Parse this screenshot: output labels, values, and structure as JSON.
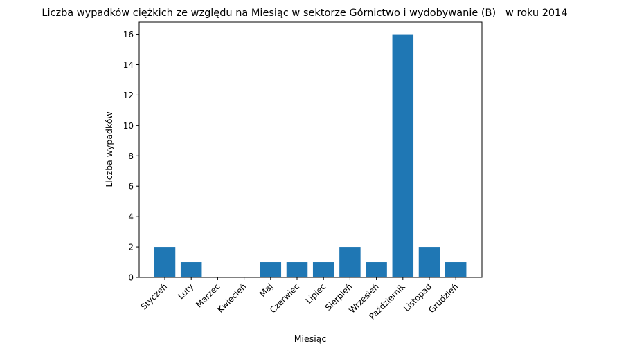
{
  "chart_data": {
    "type": "bar",
    "title": "Liczba wypadków ciężkich ze względu na Miesiąc w sektorze Górnictwo i wydobywanie (B)   w roku 2014",
    "xlabel": "Miesiąc",
    "ylabel": "Liczba wypadków",
    "categories": [
      "Styczeń",
      "Luty",
      "Marzec",
      "Kwiecień",
      "Maj",
      "Czerwiec",
      "Lipiec",
      "Sierpień",
      "Wrzesień",
      "Październik",
      "Listopad",
      "Grudzień"
    ],
    "values": [
      2,
      1,
      0,
      0,
      1,
      1,
      1,
      2,
      1,
      16,
      2,
      1
    ],
    "ylim": [
      0,
      16.8
    ],
    "yticks": [
      0,
      2,
      4,
      6,
      8,
      10,
      12,
      14,
      16
    ],
    "grid": false,
    "legend": "none",
    "bar_color": "#1f77b4"
  }
}
